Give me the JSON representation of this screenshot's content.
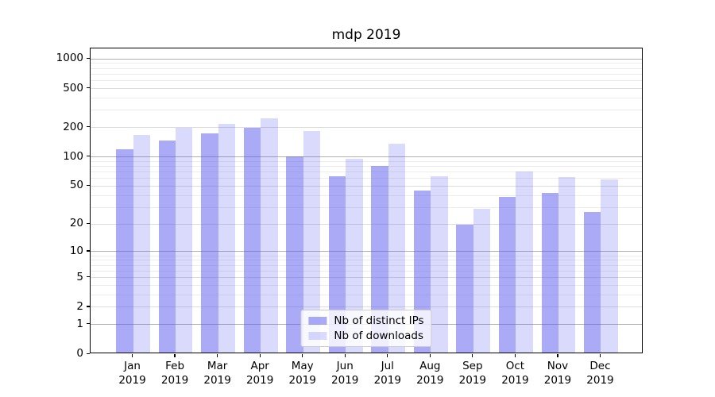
{
  "title": "mdp 2019",
  "chart_data": {
    "type": "bar",
    "title": "mdp 2019",
    "categories": [
      "Jan",
      "Feb",
      "Mar",
      "Apr",
      "May",
      "Jun",
      "Jul",
      "Aug",
      "Sep",
      "Oct",
      "Nov",
      "Dec"
    ],
    "category_year": "2019",
    "series": [
      {
        "name": "Nb of distinct IPs",
        "color": "rgba(85,85,240,0.50)",
        "values": [
          115,
          142,
          168,
          190,
          97,
          61,
          78,
          43,
          19,
          37,
          41,
          26
        ]
      },
      {
        "name": "Nb of downloads",
        "color": "rgba(85,85,240,0.22)",
        "values": [
          162,
          190,
          210,
          238,
          178,
          93,
          132,
          61,
          28,
          68,
          60,
          57
        ]
      }
    ],
    "y_axis": {
      "scale": "log1p",
      "max": 1280,
      "ticks": [
        0,
        1,
        2,
        5,
        10,
        20,
        50,
        100,
        200,
        500,
        1000
      ],
      "tick_labels": [
        "0",
        "1",
        "2",
        "5",
        "10",
        "20",
        "50",
        "100",
        "200",
        "500",
        "1000"
      ],
      "major_gridlines": [
        1,
        10,
        100,
        1000
      ],
      "minor_gridlines": [
        2,
        3,
        4,
        5,
        6,
        7,
        8,
        9,
        20,
        30,
        40,
        50,
        60,
        70,
        80,
        90,
        200,
        300,
        400,
        500,
        600,
        700,
        800,
        900
      ]
    },
    "x_axis": {
      "tick_labels_line2": "2019"
    },
    "legend": {
      "position": "lower center"
    },
    "colors": {
      "bar_dark": "rgba(85,85,240,0.50)",
      "bar_light": "rgba(85,85,240,0.22)",
      "major_grid": "#b0b0b0",
      "labeled_minor_grid": "#dcdcdc",
      "minor_grid": "#ececec",
      "spine": "#000000",
      "text": "#000000"
    }
  }
}
